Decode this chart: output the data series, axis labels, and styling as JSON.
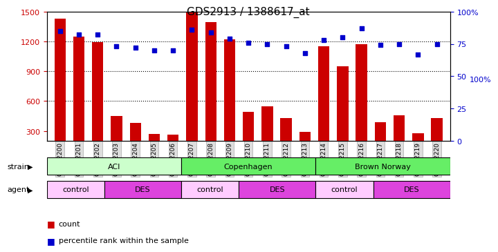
{
  "title": "GDS2913 / 1388617_at",
  "samples": [
    "GSM92200",
    "GSM92201",
    "GSM92202",
    "GSM92203",
    "GSM92204",
    "GSM92205",
    "GSM92206",
    "GSM92207",
    "GSM92208",
    "GSM92209",
    "GSM92210",
    "GSM92211",
    "GSM92212",
    "GSM92213",
    "GSM92214",
    "GSM92215",
    "GSM92216",
    "GSM92217",
    "GSM92218",
    "GSM92219",
    "GSM92220"
  ],
  "counts": [
    1430,
    1250,
    1195,
    450,
    380,
    270,
    260,
    1490,
    1390,
    1220,
    490,
    545,
    430,
    290,
    1150,
    950,
    1170,
    385,
    460,
    275,
    430
  ],
  "percentiles": [
    85,
    82,
    82,
    73,
    72,
    70,
    70,
    86,
    84,
    79,
    76,
    75,
    73,
    68,
    78,
    80,
    87,
    74,
    75,
    67,
    75
  ],
  "ylim_left": [
    200,
    1500
  ],
  "ylim_right": [
    0,
    100
  ],
  "yticks_left": [
    300,
    600,
    900,
    1200,
    1500
  ],
  "yticks_right": [
    0,
    25,
    50,
    75,
    100
  ],
  "bar_color": "#cc0000",
  "scatter_color": "#0000cc",
  "strain_groups": [
    {
      "label": "ACI",
      "start": 0,
      "end": 6,
      "color": "#ccffcc"
    },
    {
      "label": "Copenhagen",
      "start": 7,
      "end": 13,
      "color": "#66dd66"
    },
    {
      "label": "Brown Norway",
      "start": 14,
      "end": 20,
      "color": "#66dd66"
    }
  ],
  "agent_groups": [
    {
      "label": "control",
      "start": 0,
      "end": 2,
      "color": "#ffccff"
    },
    {
      "label": "DES",
      "start": 3,
      "end": 6,
      "color": "#dd66dd"
    },
    {
      "label": "control",
      "start": 7,
      "end": 9,
      "color": "#ffccff"
    },
    {
      "label": "DES",
      "start": 10,
      "end": 13,
      "color": "#dd66dd"
    },
    {
      "label": "control",
      "start": 14,
      "end": 16,
      "color": "#ffccff"
    },
    {
      "label": "DES",
      "start": 17,
      "end": 20,
      "color": "#dd66dd"
    }
  ],
  "strain_label": "strain",
  "agent_label": "agent",
  "legend_count_label": "count",
  "legend_pct_label": "percentile rank within the sample",
  "grid_color": "#000000",
  "tick_color_left": "#cc0000",
  "tick_color_right": "#0000cc",
  "bar_bottom": 200,
  "ax_bg": "#ffffff",
  "outer_bg": "#ffffff"
}
